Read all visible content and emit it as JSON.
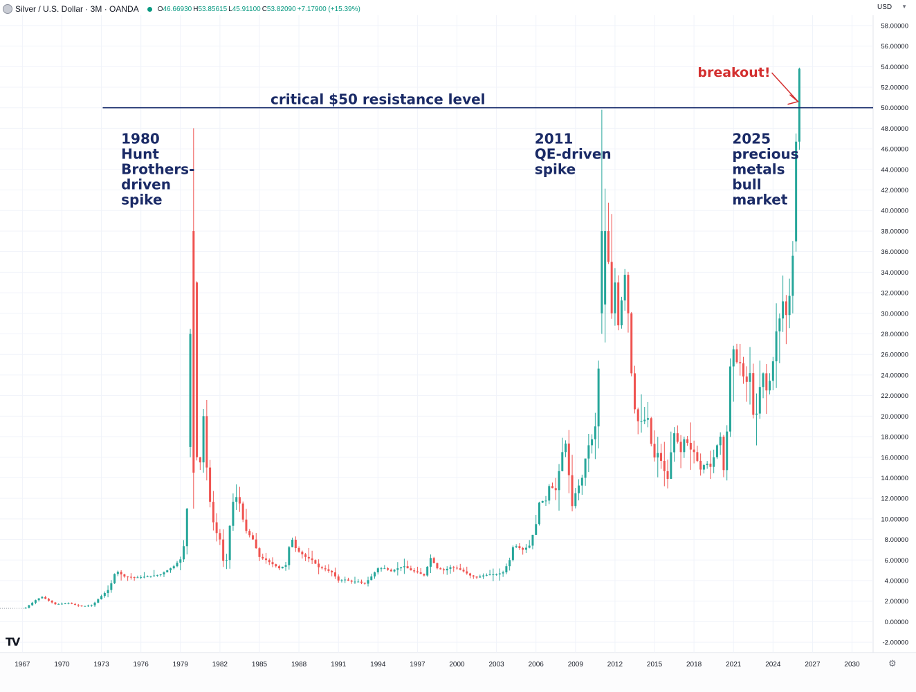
{
  "header": {
    "symbol": "Silver / U.S. Dollar · 3M · OANDA",
    "open_key": "O",
    "open": "46.66930",
    "high_key": "H",
    "high": "53.85615",
    "low_key": "L",
    "low": "45.91100",
    "close_key": "C",
    "close": "53.82090",
    "change": "+7.17900 (+15.39%)"
  },
  "currency": "USD",
  "logo_text": "TV",
  "colors": {
    "up": "#26a69a",
    "down": "#ef5350",
    "resistance": "#1a2e6e",
    "annotation_dark": "#1a2a66",
    "annotation_red": "#d32f2f"
  },
  "chart_data": {
    "type": "candlestick",
    "title": "Silver / U.S. Dollar · 3M · OANDA",
    "xlabel": "",
    "ylabel": "",
    "xlim": [
      1965.3,
      2031.6
    ],
    "ylim": [
      -3,
      59
    ],
    "y_ticks": [
      "-2.00000",
      "0.00000",
      "2.00000",
      "4.00000",
      "6.00000",
      "8.00000",
      "10.00000",
      "12.00000",
      "14.00000",
      "16.00000",
      "18.00000",
      "20.00000",
      "22.00000",
      "24.00000",
      "26.00000",
      "28.00000",
      "30.00000",
      "32.00000",
      "34.00000",
      "36.00000",
      "38.00000",
      "40.00000",
      "42.00000",
      "44.00000",
      "46.00000",
      "48.00000",
      "50.00000",
      "52.00000",
      "54.00000",
      "56.00000",
      "58.00000"
    ],
    "x_ticks": [
      "1967",
      "1970",
      "1973",
      "1976",
      "1979",
      "1982",
      "1985",
      "1988",
      "1991",
      "1994",
      "1997",
      "2000",
      "2003",
      "2006",
      "2009",
      "2012",
      "2015",
      "2018",
      "2021",
      "2024",
      "2027",
      "2030"
    ],
    "grid": true,
    "price_path": [
      [
        1965.3,
        1.3
      ],
      [
        1967.2,
        1.3
      ],
      [
        1968.1,
        2.2
      ],
      [
        1968.5,
        2.4
      ],
      [
        1969.5,
        1.7
      ],
      [
        1970.5,
        1.8
      ],
      [
        1971.5,
        1.5
      ],
      [
        1972.3,
        1.6
      ],
      [
        1973.0,
        2.5
      ],
      [
        1973.6,
        3.2
      ],
      [
        1974.1,
        5.0
      ],
      [
        1974.7,
        4.4
      ],
      [
        1975.6,
        4.3
      ],
      [
        1976.5,
        4.4
      ],
      [
        1977.5,
        4.6
      ],
      [
        1978.5,
        5.4
      ],
      [
        1979.1,
        6.2
      ],
      [
        1979.4,
        8.5
      ],
      [
        1979.7,
        16.0
      ],
      [
        1979.9,
        28.0
      ],
      [
        1980.1,
        38.0
      ],
      [
        1980.25,
        16.0
      ],
      [
        1980.5,
        15.5
      ],
      [
        1980.75,
        20.0
      ],
      [
        1981.0,
        15.0
      ],
      [
        1981.3,
        11.0
      ],
      [
        1981.6,
        9.0
      ],
      [
        1982.0,
        8.0
      ],
      [
        1982.3,
        5.5
      ],
      [
        1982.5,
        6.0
      ],
      [
        1982.8,
        10.0
      ],
      [
        1983.1,
        12.5
      ],
      [
        1983.5,
        11.5
      ],
      [
        1983.9,
        9.0
      ],
      [
        1984.5,
        8.0
      ],
      [
        1985.0,
        6.3
      ],
      [
        1985.5,
        6.0
      ],
      [
        1986.0,
        5.6
      ],
      [
        1986.5,
        5.2
      ],
      [
        1987.0,
        5.5
      ],
      [
        1987.4,
        8.3
      ],
      [
        1987.8,
        7.0
      ],
      [
        1988.5,
        6.3
      ],
      [
        1989.0,
        6.0
      ],
      [
        1989.5,
        5.3
      ],
      [
        1990.0,
        5.1
      ],
      [
        1990.5,
        4.8
      ],
      [
        1991.0,
        4.0
      ],
      [
        1991.5,
        4.1
      ],
      [
        1992.0,
        3.9
      ],
      [
        1992.5,
        3.9
      ],
      [
        1993.0,
        3.7
      ],
      [
        1993.5,
        4.4
      ],
      [
        1994.0,
        5.2
      ],
      [
        1994.5,
        5.2
      ],
      [
        1995.0,
        4.9
      ],
      [
        1995.5,
        5.2
      ],
      [
        1996.0,
        5.4
      ],
      [
        1996.5,
        5.0
      ],
      [
        1997.0,
        4.8
      ],
      [
        1997.5,
        4.5
      ],
      [
        1998.0,
        6.2
      ],
      [
        1998.5,
        5.2
      ],
      [
        1999.0,
        5.0
      ],
      [
        1999.5,
        5.3
      ],
      [
        2000.0,
        5.2
      ],
      [
        2000.5,
        4.9
      ],
      [
        2001.0,
        4.5
      ],
      [
        2001.5,
        4.3
      ],
      [
        2002.0,
        4.5
      ],
      [
        2002.5,
        4.6
      ],
      [
        2003.0,
        4.6
      ],
      [
        2003.5,
        4.8
      ],
      [
        2004.0,
        6.0
      ],
      [
        2004.3,
        7.5
      ],
      [
        2004.7,
        7.2
      ],
      [
        2005.0,
        7.0
      ],
      [
        2005.5,
        7.4
      ],
      [
        2006.0,
        9.5
      ],
      [
        2006.3,
        12.0
      ],
      [
        2006.7,
        11.5
      ],
      [
        2007.0,
        13.2
      ],
      [
        2007.5,
        12.8
      ],
      [
        2008.0,
        16.5
      ],
      [
        2008.3,
        17.5
      ],
      [
        2008.7,
        11.0
      ],
      [
        2009.0,
        12.5
      ],
      [
        2009.5,
        14.0
      ],
      [
        2009.9,
        17.0
      ],
      [
        2010.2,
        17.5
      ],
      [
        2010.5,
        19.0
      ],
      [
        2010.9,
        28.0
      ],
      [
        2011.25,
        38.0
      ],
      [
        2011.5,
        35.0
      ],
      [
        2011.75,
        30.0
      ],
      [
        2012.0,
        33.0
      ],
      [
        2012.3,
        28.0
      ],
      [
        2012.7,
        34.5
      ],
      [
        2013.0,
        30.0
      ],
      [
        2013.3,
        23.0
      ],
      [
        2013.6,
        19.5
      ],
      [
        2014.0,
        19.5
      ],
      [
        2014.5,
        19.8
      ],
      [
        2014.9,
        15.8
      ],
      [
        2015.3,
        16.5
      ],
      [
        2015.7,
        14.8
      ],
      [
        2016.0,
        13.9
      ],
      [
        2016.3,
        17.0
      ],
      [
        2016.6,
        19.0
      ],
      [
        2016.9,
        16.0
      ],
      [
        2017.3,
        18.0
      ],
      [
        2017.7,
        16.8
      ],
      [
        2018.0,
        16.5
      ],
      [
        2018.5,
        14.8
      ],
      [
        2018.9,
        15.5
      ],
      [
        2019.3,
        15.0
      ],
      [
        2019.7,
        17.0
      ],
      [
        2020.0,
        18.0
      ],
      [
        2020.2,
        14.0
      ],
      [
        2020.5,
        18.5
      ],
      [
        2020.7,
        24.5
      ],
      [
        2021.0,
        26.5
      ],
      [
        2021.3,
        25.0
      ],
      [
        2021.6,
        25.2
      ],
      [
        2021.9,
        22.5
      ],
      [
        2022.2,
        25.0
      ],
      [
        2022.6,
        18.5
      ],
      [
        2022.9,
        22.0
      ],
      [
        2023.2,
        24.5
      ],
      [
        2023.5,
        22.5
      ],
      [
        2023.9,
        24.0
      ],
      [
        2024.2,
        28.0
      ],
      [
        2024.5,
        29.5
      ],
      [
        2024.8,
        31.5
      ],
      [
        2025.1,
        29.0
      ],
      [
        2025.35,
        33.5
      ],
      [
        2025.6,
        37.0
      ],
      [
        2025.9,
        46.7
      ],
      [
        2026.05,
        53.8
      ]
    ],
    "resistance_level": 50,
    "annotations": [
      {
        "text": "critical $50 resistance level",
        "x": 1994.0,
        "y": 50
      },
      {
        "text": "breakout!",
        "x": 2023.8,
        "y": 53.0
      },
      {
        "lines": [
          "1980",
          "Hunt",
          "Brothers-",
          "driven",
          "spike"
        ],
        "x": 1974.5,
        "y": 46.5
      },
      {
        "lines": [
          "2011",
          "QE-driven",
          "spike"
        ],
        "x": 2005.9,
        "y": 46.5
      },
      {
        "lines": [
          "2025",
          "precious",
          "metals",
          "bull",
          "market"
        ],
        "x": 2020.9,
        "y": 46.5
      }
    ]
  }
}
